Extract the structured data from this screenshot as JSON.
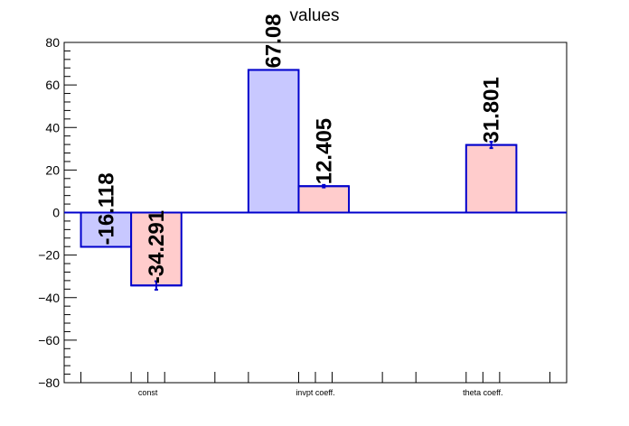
{
  "chart_data": {
    "type": "bar",
    "title": "values",
    "xlabel": "",
    "ylabel": "",
    "ylim": [
      -80,
      80
    ],
    "yticks": [
      -80,
      -60,
      -40,
      -20,
      0,
      20,
      40,
      60,
      80
    ],
    "categories": [
      "const",
      "invpt coeff.",
      "theta coeff."
    ],
    "series": [
      {
        "color": "#c8c8ff",
        "edge_color": "#0000cc",
        "values": [
          -16.118,
          67.08,
          null
        ],
        "labels": [
          "-16.118",
          "67.08",
          ""
        ]
      },
      {
        "color": "#ffcccc",
        "edge_color": "#0000cc",
        "values": [
          -34.291,
          12.405,
          31.801
        ],
        "labels": [
          "-34.291",
          "12.405",
          "31.801"
        ],
        "errors": [
          2.0,
          0.6,
          1.5
        ]
      }
    ]
  }
}
